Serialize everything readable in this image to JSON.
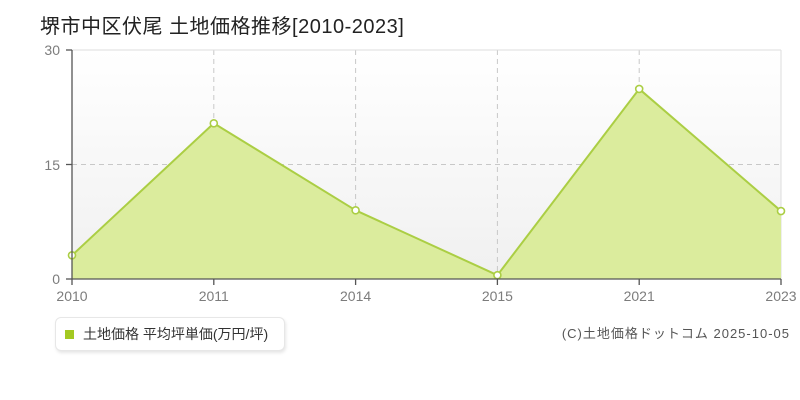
{
  "page": {
    "title": "堺市中区伏尾 土地価格推移[2010-2023]",
    "copyright": "(C)土地価格ドットコム 2025-10-05"
  },
  "legend": {
    "label": "土地価格 平均坪単価(万円/坪)"
  },
  "chart_data": {
    "type": "area",
    "title": "堺市中区伏尾 土地価格推移[2010-2023]",
    "categories": [
      "2010",
      "2011",
      "2014",
      "2015",
      "2021",
      "2023"
    ],
    "values": [
      3.1,
      20.4,
      9.0,
      0.5,
      24.9,
      8.9
    ],
    "series_name": "土地価格 平均坪単価(万円/坪)",
    "xlabel": "",
    "ylabel": "",
    "ylim": [
      0,
      30
    ],
    "yticks": [
      0,
      15,
      30
    ],
    "grid": true,
    "legend_position": "bottom-left",
    "colors": {
      "area_fill": "#dbec9d",
      "line": "#abce44",
      "marker_fill": "#ffffff",
      "legend_marker": "#a3c922",
      "grid": "#c8c8c8",
      "plot_border": "#dddddd",
      "axis": "#555555",
      "tick_label": "#7c7c7c",
      "plot_bg_top": "#ffffff",
      "plot_bg_bottom": "#f0f0f0"
    }
  }
}
